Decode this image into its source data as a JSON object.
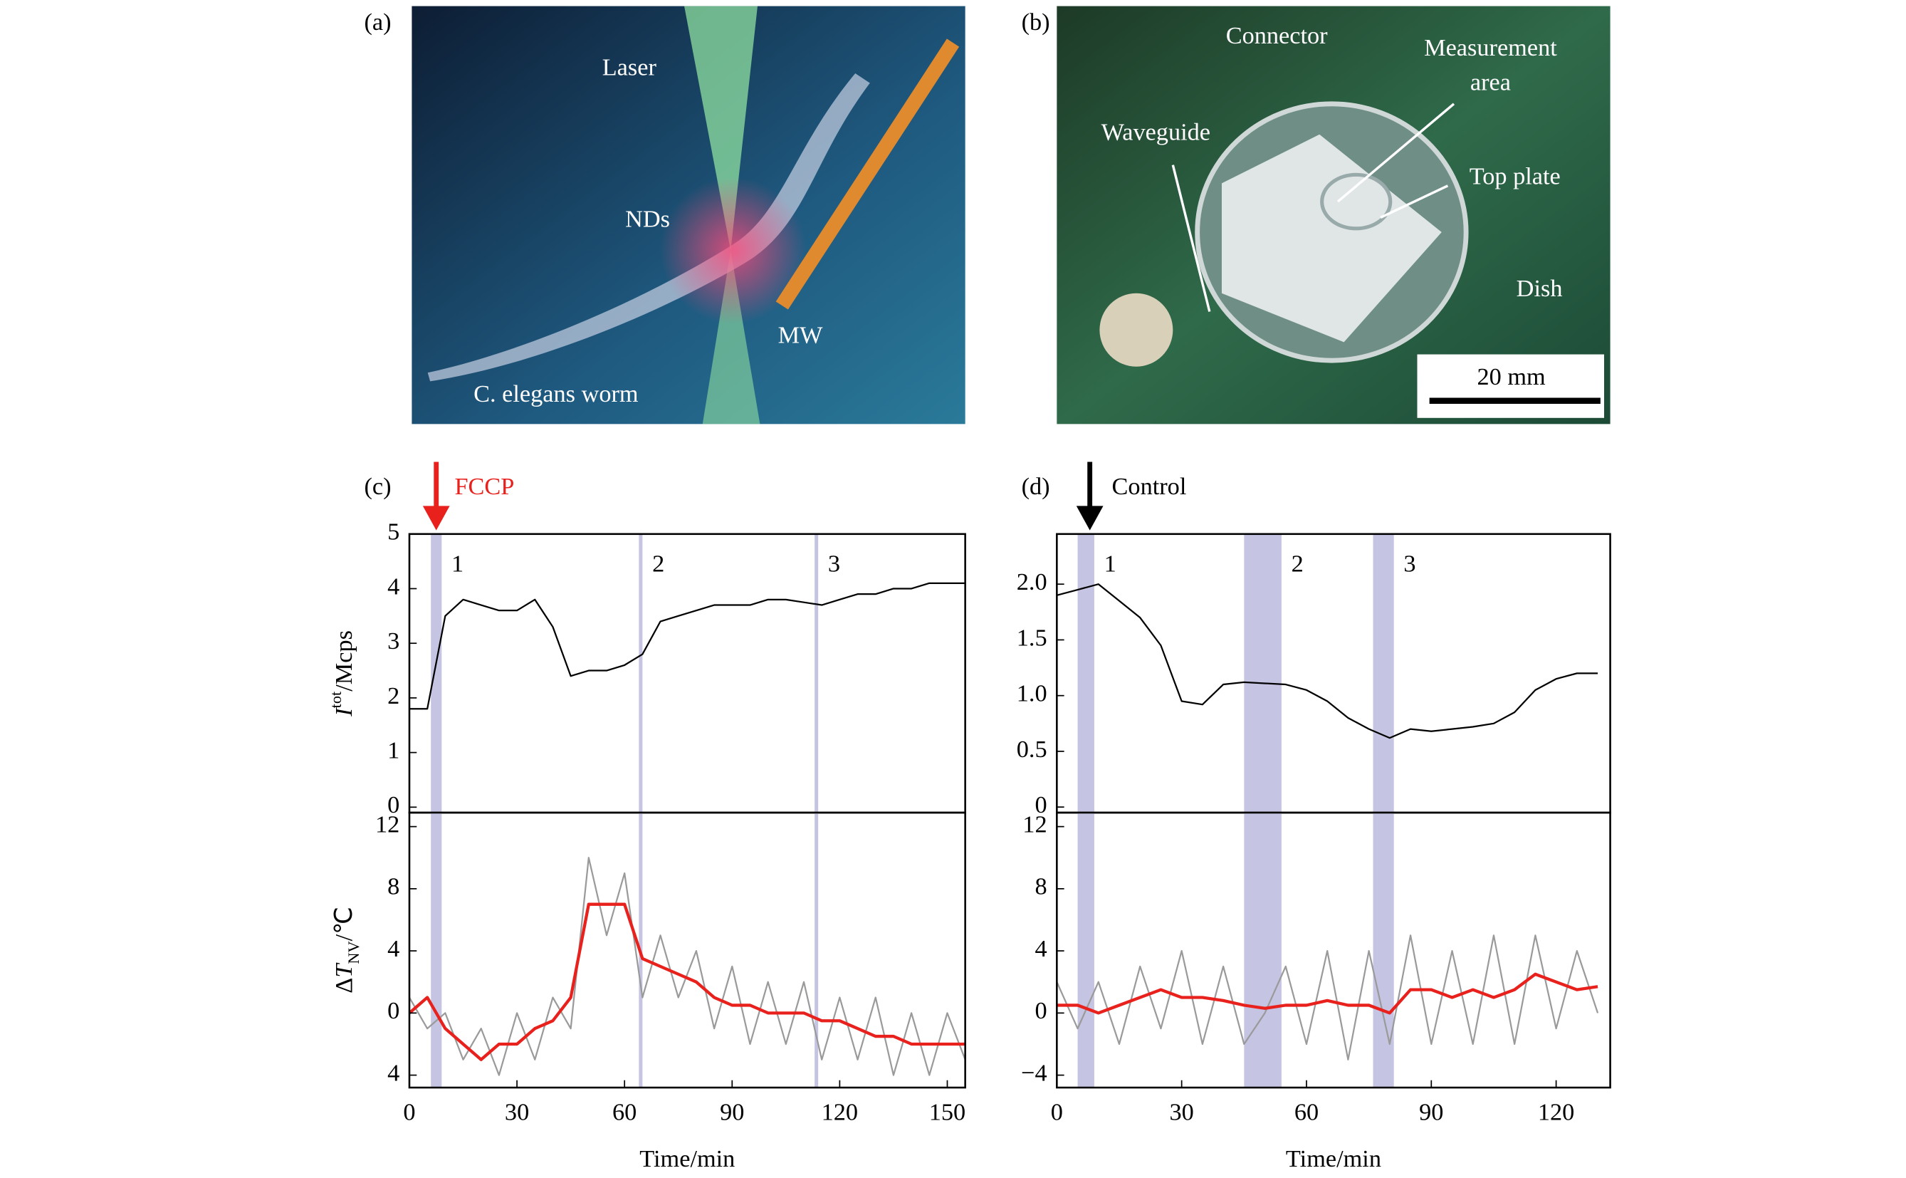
{
  "panels": {
    "a": {
      "label": "(a)",
      "annotations": [
        "Laser",
        "NDs",
        "MW",
        "C. elegans worm"
      ]
    },
    "b": {
      "label": "(b)",
      "annotations": [
        "Connector",
        "Waveguide",
        "Top plate",
        "Dish"
      ],
      "measurement": [
        "Measurement",
        "area"
      ],
      "scale": "20 mm"
    },
    "c": {
      "label": "(c)",
      "arrow_label": "FCCP"
    },
    "d": {
      "label": "(d)",
      "arrow_label": "Control"
    }
  },
  "chart_data": [
    {
      "type": "line",
      "xlim": [
        0,
        155
      ],
      "ylim": [
        -0.1,
        5
      ],
      "yticks": [
        0,
        1,
        2,
        3,
        4,
        5
      ],
      "y_label": [
        {
          "text": "I",
          "style": "italic"
        },
        {
          "text": "tot",
          "style": "sup"
        },
        {
          "text": "/Mcps"
        }
      ],
      "bands": [
        {
          "range": [
            6,
            9
          ],
          "label": "1"
        },
        {
          "range": [
            64,
            65
          ],
          "label": "2"
        },
        {
          "range": [
            113,
            114
          ],
          "label": "3"
        }
      ],
      "x": [
        0,
        5,
        10,
        15,
        20,
        25,
        30,
        35,
        40,
        45,
        50,
        55,
        60,
        65,
        70,
        75,
        80,
        85,
        90,
        95,
        100,
        105,
        110,
        115,
        120,
        125,
        130,
        135,
        140,
        145,
        150,
        155
      ],
      "series": [
        {
          "color": "#000000",
          "values": [
            1.8,
            1.8,
            3.5,
            3.8,
            3.7,
            3.6,
            3.6,
            3.8,
            3.3,
            2.4,
            2.5,
            2.5,
            2.6,
            2.8,
            3.4,
            3.5,
            3.6,
            3.7,
            3.7,
            3.7,
            3.8,
            3.8,
            3.75,
            3.7,
            3.8,
            3.9,
            3.9,
            4.0,
            4.0,
            4.1,
            4.1,
            4.1
          ]
        }
      ]
    },
    {
      "type": "line",
      "xlim": [
        0,
        155
      ],
      "ylim": [
        -4.8,
        12.9
      ],
      "yticks": [
        {
          "value": -4,
          "label": "4"
        },
        0,
        4,
        8,
        12
      ],
      "xticks": [
        0,
        30,
        60,
        90,
        120,
        150
      ],
      "x_label": "Time/min",
      "y_label": [
        {
          "text": "Δ"
        },
        {
          "text": "T",
          "style": "italic"
        },
        {
          "text": "NV",
          "style": "sub"
        },
        {
          "text": "/℃"
        }
      ],
      "bands": [
        {
          "range": [
            6,
            9
          ]
        },
        {
          "range": [
            64,
            65
          ]
        },
        {
          "range": [
            113,
            114
          ]
        }
      ],
      "x": [
        0,
        5,
        10,
        15,
        20,
        25,
        30,
        35,
        40,
        45,
        50,
        55,
        60,
        65,
        70,
        75,
        80,
        85,
        90,
        95,
        100,
        105,
        110,
        115,
        120,
        125,
        130,
        135,
        140,
        145,
        150,
        155
      ],
      "series": [
        {
          "color": "#9a9a9a",
          "values": [
            1,
            -1,
            0,
            -3,
            -1,
            -4,
            0,
            -3,
            1,
            -1,
            10,
            5,
            9,
            1,
            5,
            1,
            4,
            -1,
            3,
            -2,
            2,
            -2,
            2,
            -3,
            1,
            -3,
            1,
            -4,
            0,
            -4,
            0,
            -3
          ]
        },
        {
          "color": "#e8211d",
          "values": [
            0,
            1,
            -1,
            -2,
            -3,
            -2,
            -2,
            -1,
            -0.5,
            1,
            7,
            7,
            7,
            3.5,
            3,
            2.5,
            2,
            1,
            0.5,
            0.5,
            0,
            0,
            0,
            -0.5,
            -0.5,
            -1,
            -1.5,
            -1.5,
            -2,
            -2,
            -2,
            -2
          ]
        }
      ]
    },
    {
      "type": "line",
      "xlim": [
        0,
        133
      ],
      "ylim": [
        -0.05,
        2.45
      ],
      "yticks": [
        0,
        0.5,
        {
          "value": 1,
          "label": "1.0"
        },
        1.5,
        {
          "value": 2,
          "label": "2.0"
        }
      ],
      "bands": [
        {
          "range": [
            5,
            9
          ],
          "label": "1"
        },
        {
          "range": [
            45,
            54
          ],
          "label": "2"
        },
        {
          "range": [
            76,
            81
          ],
          "label": "3"
        }
      ],
      "x": [
        0,
        5,
        10,
        15,
        20,
        25,
        30,
        35,
        40,
        45,
        50,
        55,
        60,
        65,
        70,
        75,
        80,
        85,
        90,
        95,
        100,
        105,
        110,
        115,
        120,
        125,
        130
      ],
      "series": [
        {
          "color": "#000000",
          "values": [
            1.9,
            1.95,
            2.0,
            1.85,
            1.7,
            1.45,
            0.95,
            0.92,
            1.1,
            1.12,
            1.11,
            1.1,
            1.05,
            0.95,
            0.8,
            0.7,
            0.62,
            0.7,
            0.68,
            0.7,
            0.72,
            0.75,
            0.85,
            1.05,
            1.15,
            1.2,
            1.2
          ]
        }
      ]
    },
    {
      "type": "line",
      "xlim": [
        0,
        133
      ],
      "ylim": [
        -4.8,
        12.9
      ],
      "yticks": [
        {
          "value": -4,
          "label": "−4"
        },
        0,
        4,
        8,
        12
      ],
      "xticks": [
        0,
        30,
        60,
        90,
        120
      ],
      "x_label": "Time/min",
      "bands": [
        {
          "range": [
            5,
            9
          ]
        },
        {
          "range": [
            45,
            54
          ]
        },
        {
          "range": [
            76,
            81
          ]
        }
      ],
      "x": [
        0,
        5,
        10,
        15,
        20,
        25,
        30,
        35,
        40,
        45,
        50,
        55,
        60,
        65,
        70,
        75,
        80,
        85,
        90,
        95,
        100,
        105,
        110,
        115,
        120,
        125,
        130
      ],
      "series": [
        {
          "color": "#9a9a9a",
          "values": [
            2,
            -1,
            2,
            -2,
            3,
            -1,
            4,
            -2,
            3,
            -2,
            0,
            3,
            -2,
            4,
            -3,
            4,
            -2,
            5,
            -2,
            4,
            -2,
            5,
            -2,
            5,
            -1,
            4,
            0
          ]
        },
        {
          "color": "#e8211d",
          "values": [
            0.5,
            0.5,
            0,
            0.5,
            1,
            1.5,
            1,
            1,
            0.8,
            0.5,
            0.3,
            0.5,
            0.5,
            0.8,
            0.5,
            0.5,
            0,
            1.5,
            1.5,
            1,
            1.5,
            1,
            1.5,
            2.5,
            2,
            1.5,
            1.7
          ]
        }
      ]
    }
  ]
}
